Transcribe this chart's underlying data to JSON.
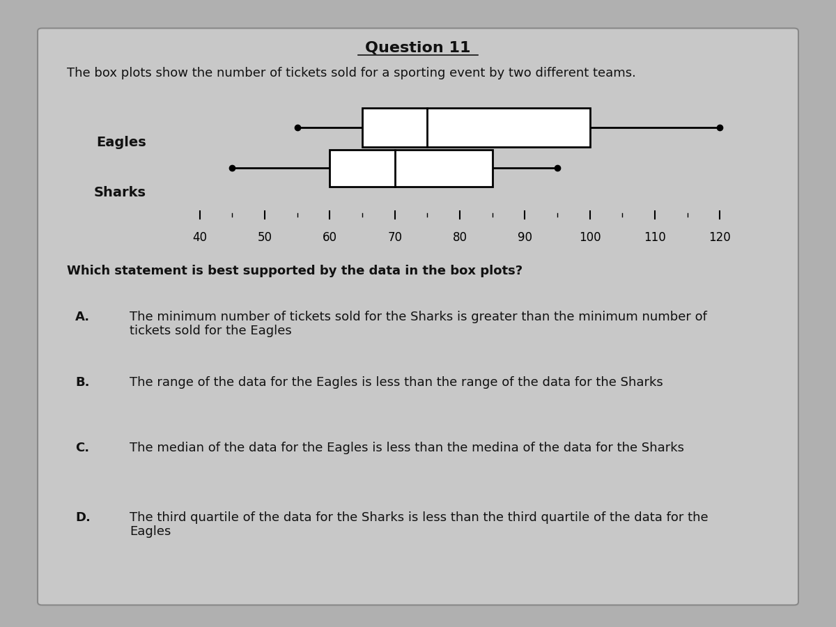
{
  "title": "Question 11",
  "subtitle": "The box plots show the number of tickets sold for a sporting event by two different teams.",
  "question": "Which statement is best supported by the data in the box plots?",
  "eagles": {
    "min": 55,
    "q1": 65,
    "median": 75,
    "q3": 100,
    "max": 120,
    "label": "Eagles"
  },
  "sharks": {
    "min": 45,
    "q1": 60,
    "median": 70,
    "q3": 85,
    "max": 95,
    "label": "Sharks"
  },
  "axis_min": 35,
  "axis_max": 125,
  "axis_ticks": [
    40,
    50,
    60,
    70,
    80,
    90,
    100,
    110,
    120
  ],
  "bg_color": "#b0b0b0",
  "panel_color": "#c8c8c8",
  "answer_labels": [
    "A.",
    "B.",
    "C.",
    "D."
  ],
  "answers": [
    "The minimum number of tickets sold for the Sharks is greater than the minimum number of\ntickets sold for the Eagles",
    "The range of the data for the Eagles is less than the range of the data for the Sharks",
    "The median of the data for the Eagles is less than the medina of the data for the Sharks",
    "The third quartile of the data for the Sharks is less than the third quartile of the data for the\nEagles"
  ],
  "text_color": "#111111",
  "title_fontsize": 16,
  "subtitle_fontsize": 13,
  "label_fontsize": 14,
  "tick_fontsize": 12,
  "answer_fontsize": 13
}
